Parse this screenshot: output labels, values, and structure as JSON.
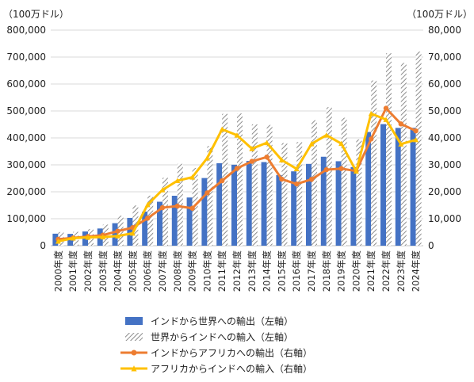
{
  "chart_data": {
    "type": "bar",
    "left_unit": "（100万ドル）",
    "right_unit": "（100万ドル）",
    "categories": [
      "2000年度",
      "2001年度",
      "2002年度",
      "2003年度",
      "2004年度",
      "2005年度",
      "2006年度",
      "2007年度",
      "2008年度",
      "2009年度",
      "2010年度",
      "2011年度",
      "2012年度",
      "2013年度",
      "2014年度",
      "2015年度",
      "2016年度",
      "2017年度",
      "2018年度",
      "2019年度",
      "2020年度",
      "2021年度",
      "2022年度",
      "2023年度",
      "2024年度"
    ],
    "left_axis": {
      "min": 0,
      "max": 800000,
      "ticks": [
        "0",
        "100,000",
        "200,000",
        "300,000",
        "400,000",
        "500,000",
        "600,000",
        "700,000",
        "800,000"
      ]
    },
    "right_axis": {
      "min": 0,
      "max": 80000,
      "ticks": [
        "0",
        "10,000",
        "20,000",
        "30,000",
        "40,000",
        "50,000",
        "60,000",
        "70,000",
        "80,000"
      ]
    },
    "series": [
      {
        "name": "インドから世界への輸出（左軸）",
        "kind": "bar",
        "axis": "left",
        "color": "#4472c4",
        "values": [
          44500,
          43800,
          52700,
          63800,
          83500,
          103100,
          126400,
          163100,
          185300,
          178800,
          251100,
          306000,
          300400,
          314400,
          310300,
          262300,
          275900,
          303500,
          330100,
          313400,
          291800,
          422000,
          451100,
          437100,
          437400
        ]
      },
      {
        "name": "世界からインドへの輸入（左軸）",
        "kind": "bar-hatched",
        "axis": "left",
        "color": "#a6a6a6",
        "values": [
          50500,
          51400,
          61400,
          78100,
          111500,
          149200,
          185700,
          251700,
          303700,
          288400,
          369800,
          489300,
          490700,
          450200,
          448000,
          381000,
          384400,
          465600,
          514100,
          474700,
          394400,
          613100,
          714000,
          678200,
          720200
        ]
      },
      {
        "name": "インドからアフリカへの輸出（右軸）",
        "kind": "line",
        "axis": "right",
        "color": "#ed7d31",
        "values": [
          2400,
          2900,
          3400,
          3900,
          5400,
          6700,
          10200,
          14100,
          14700,
          13900,
          19600,
          24100,
          28700,
          31300,
          32900,
          24700,
          22900,
          24600,
          28200,
          28600,
          27700,
          39600,
          51000,
          45200,
          42600
        ]
      },
      {
        "name": "アフリカからインドへの輸入（右軸）",
        "kind": "line",
        "axis": "right",
        "color": "#ffc000",
        "values": [
          1600,
          2800,
          3100,
          3200,
          3600,
          4600,
          15200,
          20700,
          24100,
          25400,
          32500,
          43200,
          41000,
          36000,
          38200,
          31800,
          28500,
          37800,
          41000,
          37900,
          27600,
          49000,
          46800,
          37700,
          39300
        ]
      }
    ]
  }
}
